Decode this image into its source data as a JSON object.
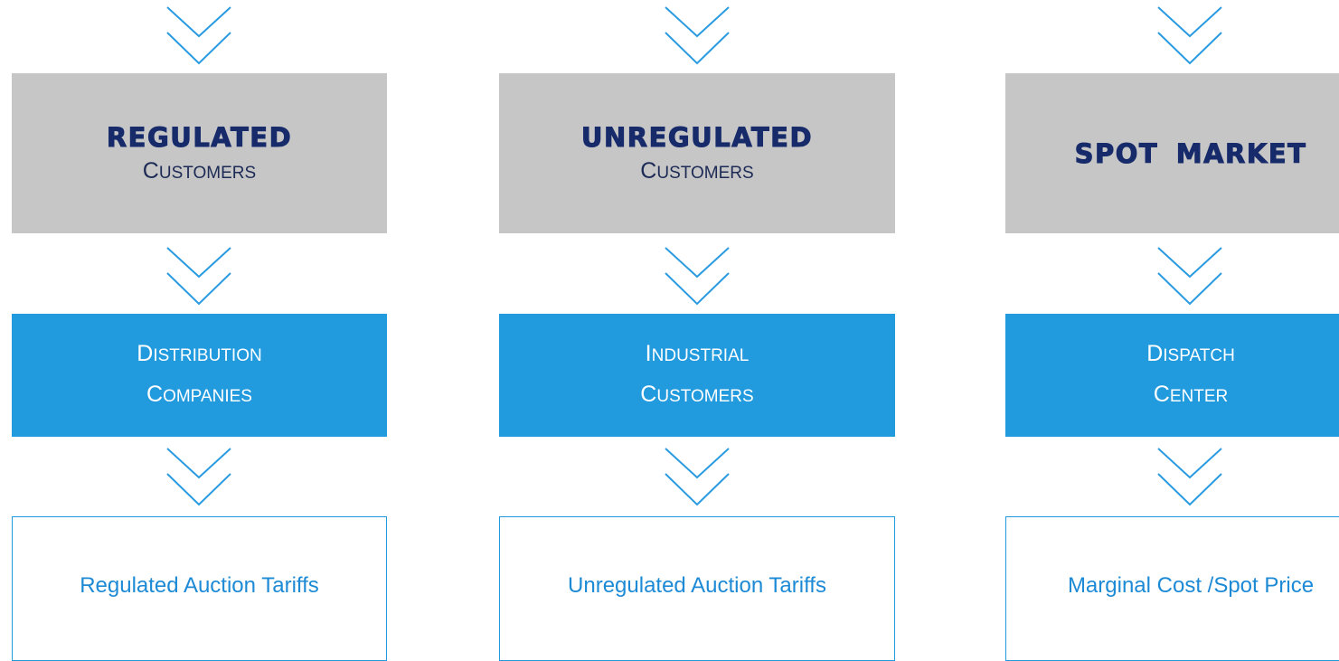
{
  "columns": [
    {
      "title": "REGULATED",
      "subtitle": "CUSTOMERS",
      "middle": [
        "DISTRIBUTION",
        "COMPANIES"
      ],
      "result": "Regulated Auction Tariffs"
    },
    {
      "title": "UNREGULATED",
      "subtitle": "CUSTOMERS",
      "middle": [
        "INDUSTRIAL",
        "CUSTOMERS"
      ],
      "result": "Unregulated Auction Tariffs"
    },
    {
      "title": "SPOT MARKET",
      "middle": [
        "DISPATCH",
        "CENTER"
      ],
      "result": "Marginal Cost /Spot Price"
    }
  ]
}
